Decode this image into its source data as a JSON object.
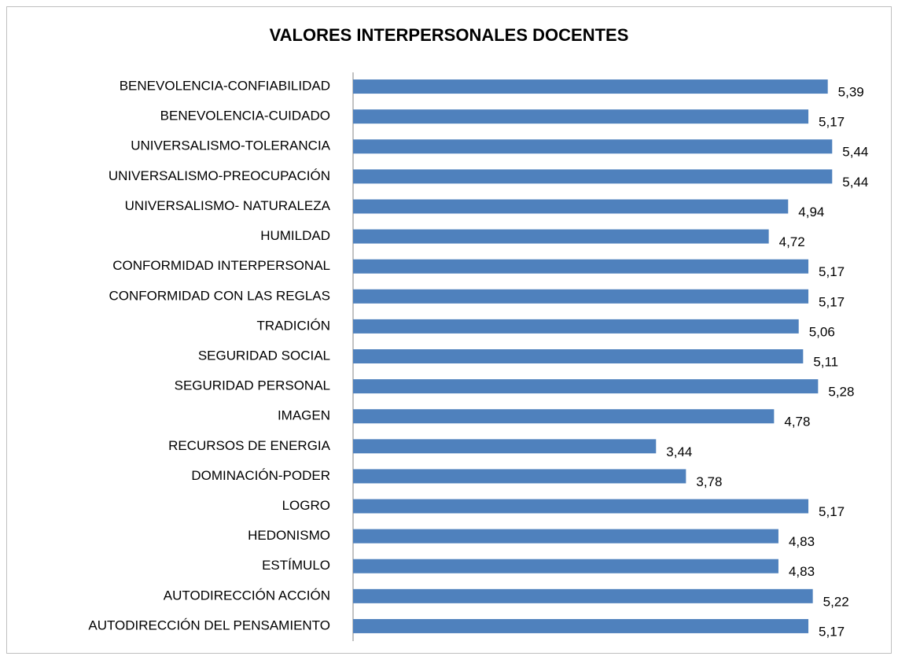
{
  "chart_data": {
    "type": "barh",
    "title": "VALORES INTERPERSONALES DOCENTES",
    "categories": [
      "BENEVOLENCIA-CONFIABILIDAD",
      "BENEVOLENCIA-CUIDADO",
      "UNIVERSALISMO-TOLERANCIA",
      "UNIVERSALISMO-PREOCUPACIÓN",
      "UNIVERSALISMO- NATURALEZA",
      "HUMILDAD",
      "CONFORMIDAD INTERPERSONAL",
      "CONFORMIDAD CON LAS REGLAS",
      "TRADICIÓN",
      "SEGURIDAD SOCIAL",
      "SEGURIDAD PERSONAL",
      "IMAGEN",
      "RECURSOS DE ENERGIA",
      "DOMINACIÓN-PODER",
      "LOGRO",
      "HEDONISMO",
      "ESTÍMULO",
      "AUTODIRECCIÓN ACCIÓN",
      "AUTODIRECCIÓN DEL PENSAMIENTO"
    ],
    "values": [
      5.39,
      5.17,
      5.44,
      5.44,
      4.94,
      4.72,
      5.17,
      5.17,
      5.06,
      5.11,
      5.28,
      4.78,
      3.44,
      3.78,
      5.17,
      4.83,
      4.83,
      5.22,
      5.17
    ],
    "value_labels": [
      "5,39",
      "5,17",
      "5,44",
      "5,44",
      "4,94",
      "4,72",
      "5,17",
      "5,17",
      "5,06",
      "5,11",
      "5,28",
      "4,78",
      "3,44",
      "3,78",
      "5,17",
      "4,83",
      "4,83",
      "5,22",
      "5,17"
    ],
    "color": "#4f81bd",
    "xlim": [
      0,
      6
    ]
  }
}
